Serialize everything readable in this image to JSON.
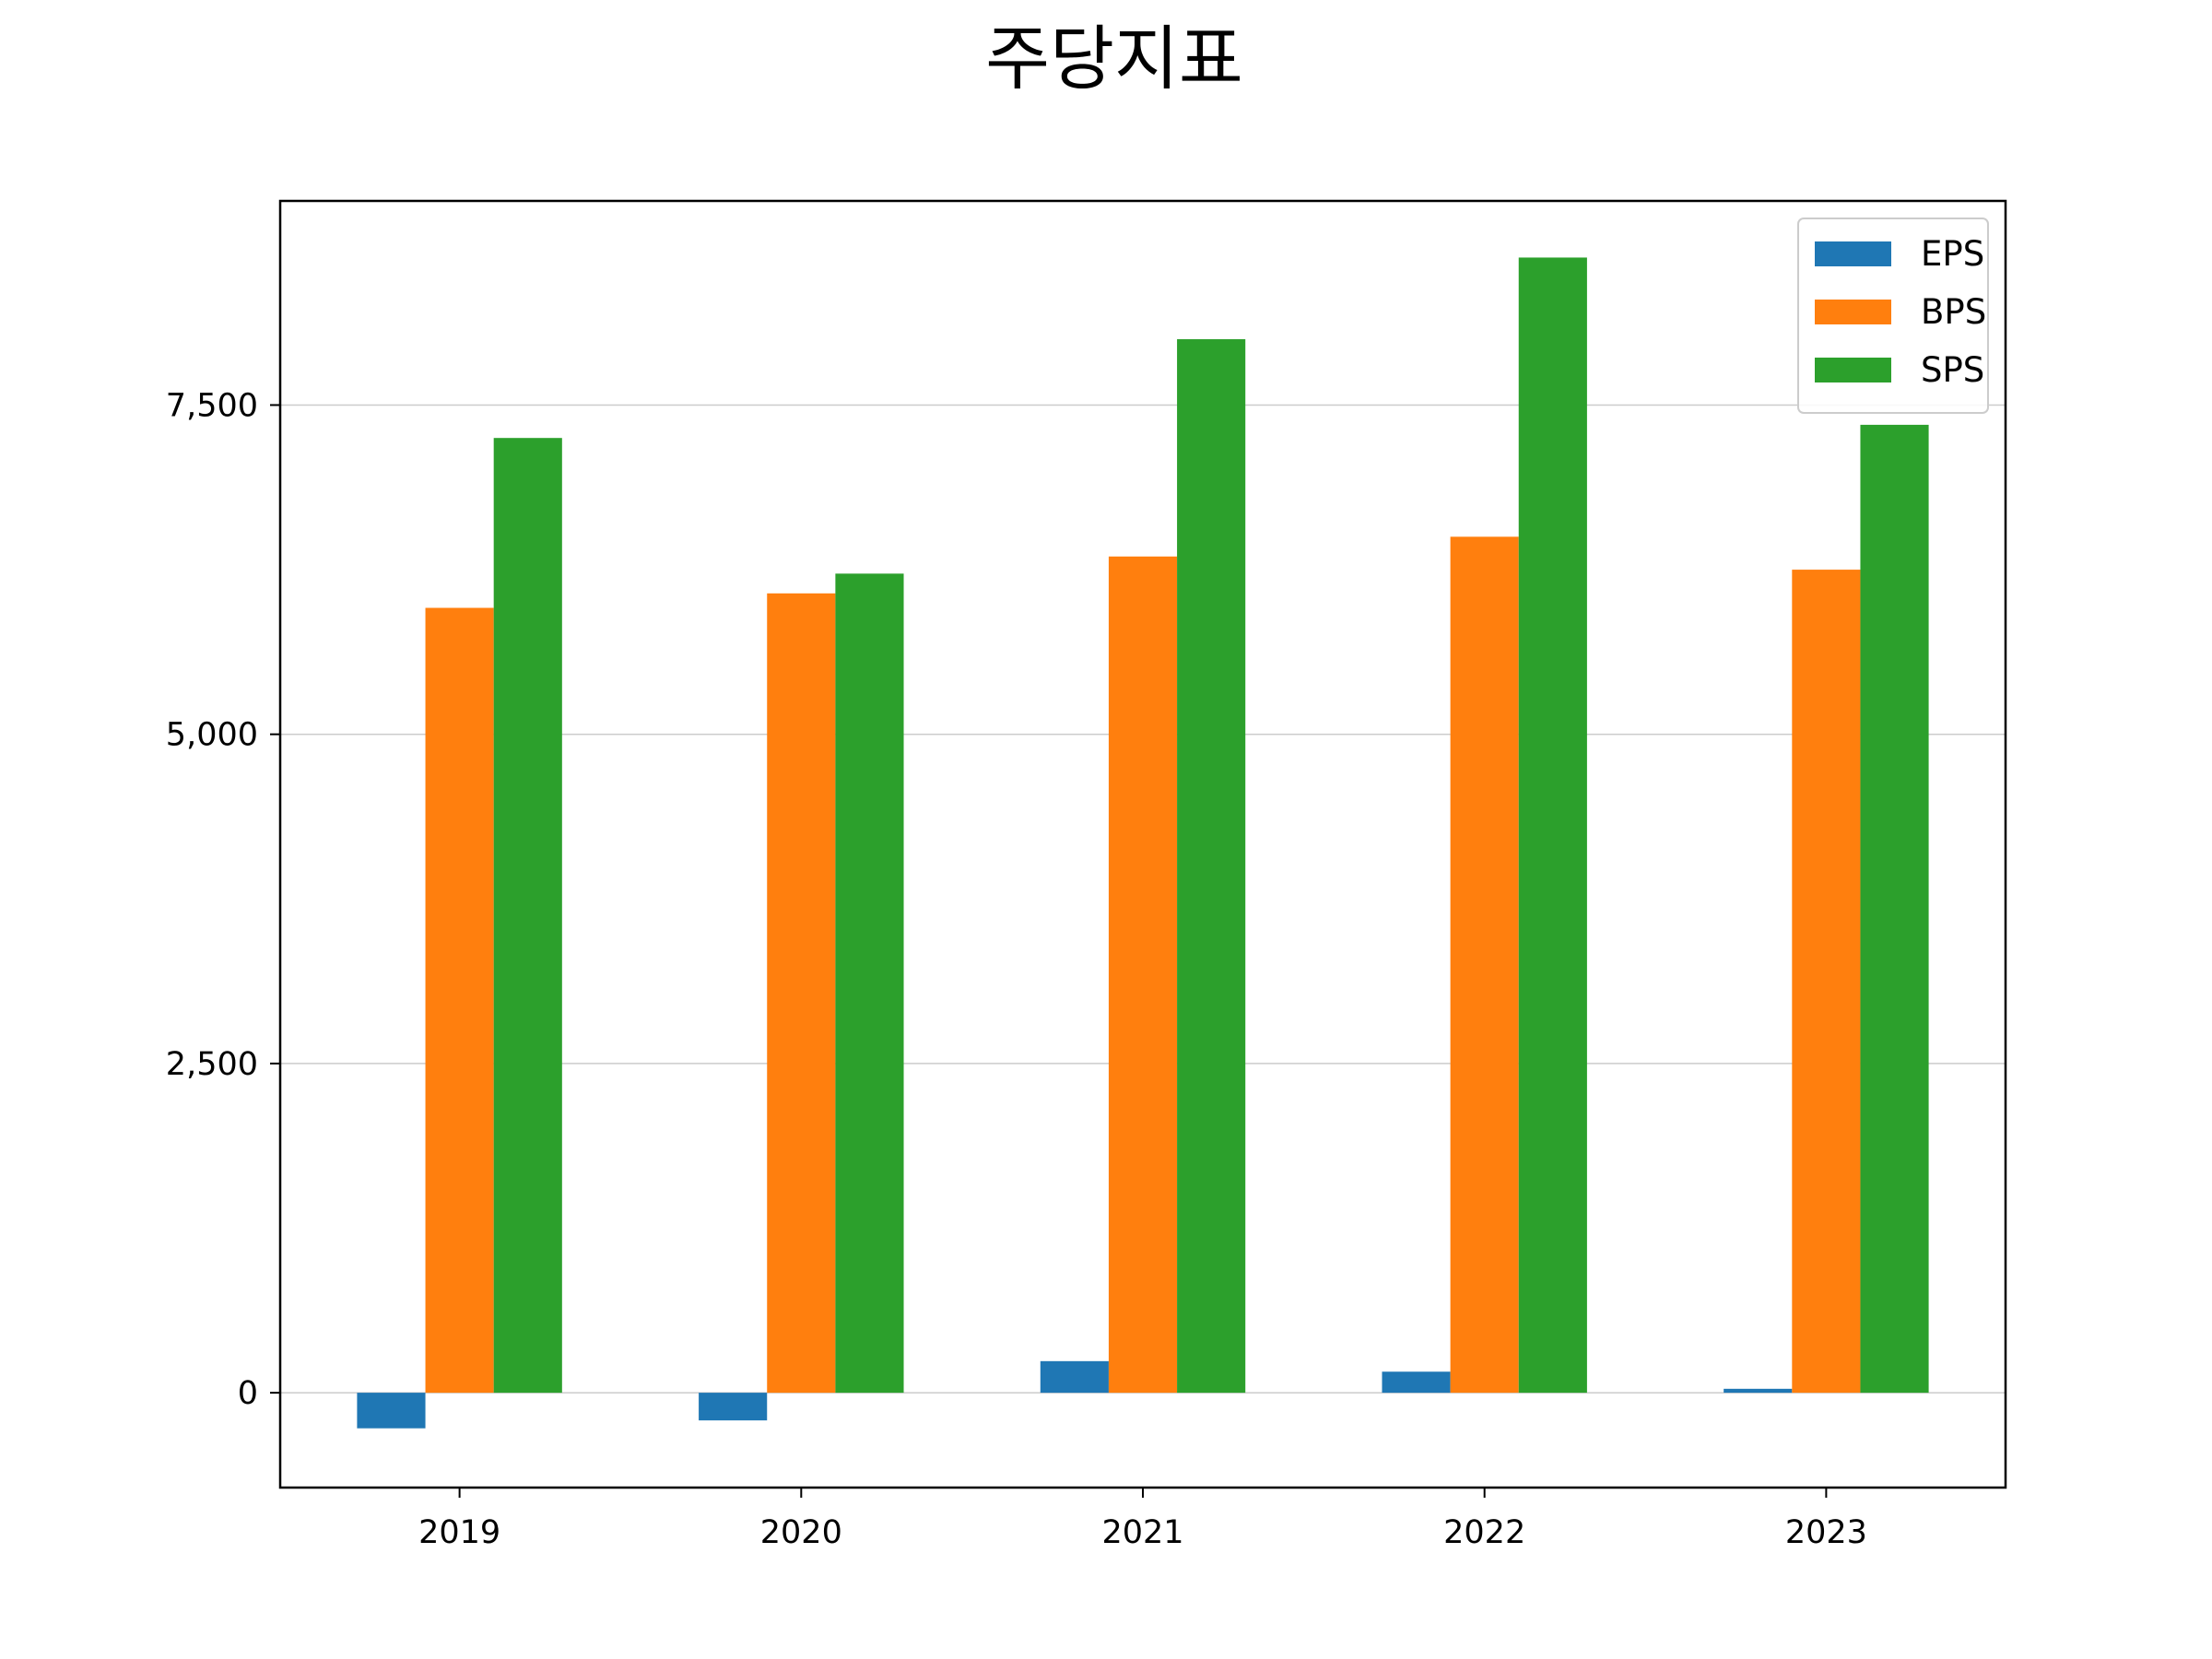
{
  "chart_data": {
    "type": "bar",
    "title": "주당지표",
    "xlabel": "",
    "ylabel": "",
    "categories": [
      "2019",
      "2020",
      "2021",
      "2022",
      "2023"
    ],
    "series": [
      {
        "name": "EPS",
        "color": "#1f77b4",
        "values": [
          -270,
          -210,
          240,
          160,
          30
        ]
      },
      {
        "name": "BPS",
        "color": "#ff7f0e",
        "values": [
          5960,
          6070,
          6350,
          6500,
          6250
        ]
      },
      {
        "name": "SPS",
        "color": "#2ca02c",
        "values": [
          7250,
          6220,
          8000,
          8620,
          7350
        ]
      }
    ],
    "ylim": [
      -720,
      9050
    ],
    "yticks": [
      0,
      2500,
      5000,
      7500
    ],
    "ytick_labels": [
      "0",
      "2,500",
      "5,000",
      "7,500"
    ],
    "grid": "y",
    "legend_position": "top-right"
  }
}
